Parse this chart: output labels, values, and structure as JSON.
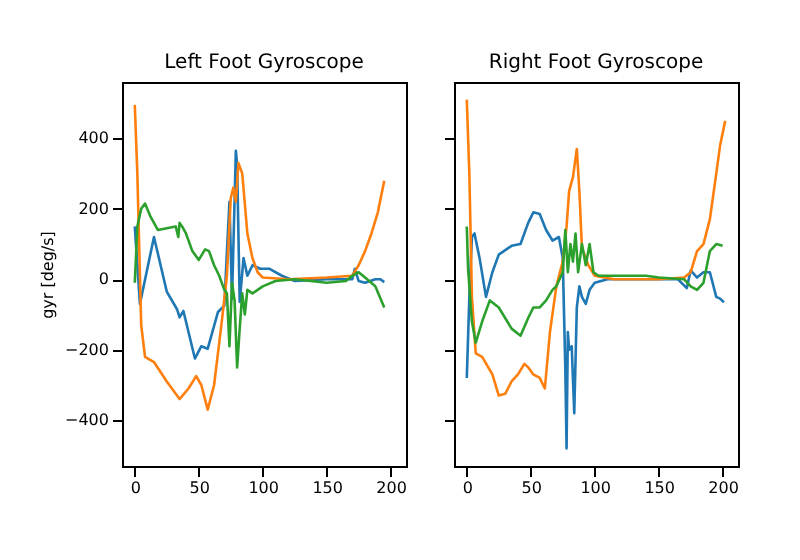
{
  "chart_data": [
    {
      "type": "line",
      "title": "Left Foot Gyroscope",
      "ylabel": "gyr [deg/s]",
      "xlim": [
        -10,
        212
      ],
      "ylim": [
        -530,
        560
      ],
      "xticks": [
        0,
        50,
        100,
        150,
        200
      ],
      "yticks": [
        -400,
        -200,
        0,
        200,
        400
      ],
      "series": [
        {
          "color": "#1f77b4",
          "x": [
            0,
            4,
            15,
            25,
            33,
            35,
            38,
            47,
            52,
            57,
            65,
            70,
            72,
            74,
            76,
            79,
            80,
            82,
            85,
            88,
            92,
            98,
            105,
            115,
            125,
            150,
            170,
            172,
            175,
            180,
            188,
            192,
            195
          ],
          "values": [
            150,
            -70,
            120,
            -35,
            -85,
            -108,
            -90,
            -225,
            -190,
            -197,
            -93,
            -75,
            78,
            220,
            -55,
            365,
            325,
            -64,
            60,
            10,
            40,
            30,
            30,
            10,
            -5,
            0,
            0,
            30,
            -5,
            -10,
            0,
            0,
            -8
          ]
        },
        {
          "color": "#ff7f0e",
          "x": [
            0,
            2,
            5,
            8,
            15,
            25,
            35,
            42,
            48,
            52,
            57,
            62,
            68,
            72,
            75,
            77,
            79,
            81,
            84,
            88,
            92,
            96,
            100,
            120,
            150,
            170,
            175,
            180,
            185,
            190,
            195
          ],
          "values": [
            495,
            300,
            -130,
            -220,
            -235,
            -290,
            -340,
            -310,
            -275,
            -300,
            -370,
            -300,
            -120,
            10,
            230,
            260,
            220,
            330,
            300,
            130,
            60,
            20,
            5,
            0,
            5,
            10,
            40,
            80,
            130,
            190,
            280
          ]
        },
        {
          "color": "#2ca02c",
          "x": [
            0,
            2,
            5,
            8,
            12,
            18,
            25,
            32,
            34,
            35,
            37,
            40,
            45,
            50,
            55,
            58,
            62,
            66,
            70,
            72,
            74,
            76,
            78,
            80,
            82,
            84,
            86,
            88,
            92,
            100,
            110,
            125,
            150,
            165,
            170,
            175,
            180,
            188,
            195
          ],
          "values": [
            -10,
            150,
            200,
            215,
            180,
            140,
            145,
            150,
            120,
            160,
            150,
            130,
            80,
            55,
            85,
            80,
            40,
            10,
            -30,
            -40,
            -190,
            -10,
            -60,
            -250,
            -140,
            -40,
            -100,
            -30,
            -40,
            -20,
            -5,
            0,
            -10,
            -5,
            10,
            20,
            5,
            -20,
            -80
          ]
        }
      ]
    },
    {
      "type": "line",
      "title": "Right Foot Gyroscope",
      "xlim": [
        -10,
        212
      ],
      "ylim": [
        -530,
        560
      ],
      "xticks": [
        0,
        50,
        100,
        150,
        200
      ],
      "yticks": [
        -400,
        -200,
        0,
        200,
        400
      ],
      "tick_labels": "x",
      "series": [
        {
          "color": "#1f77b4",
          "x": [
            0,
            2,
            4,
            6,
            10,
            15,
            20,
            25,
            35,
            42,
            48,
            52,
            57,
            62,
            67,
            72,
            75,
            77,
            78,
            79,
            80,
            82,
            84,
            86,
            88,
            90,
            93,
            96,
            100,
            110,
            130,
            150,
            165,
            172,
            175,
            180,
            185,
            190,
            195,
            198,
            201
          ],
          "values": [
            -280,
            -50,
            120,
            130,
            60,
            -50,
            20,
            70,
            95,
            100,
            160,
            190,
            185,
            140,
            110,
            120,
            60,
            -250,
            -480,
            -150,
            -200,
            -190,
            -380,
            -80,
            -20,
            -50,
            -70,
            -30,
            -10,
            0,
            0,
            0,
            0,
            -25,
            25,
            5,
            20,
            20,
            -50,
            -55,
            -65
          ]
        },
        {
          "color": "#ff7f0e",
          "x": [
            0,
            2,
            4,
            7,
            12,
            20,
            25,
            30,
            35,
            40,
            45,
            48,
            52,
            57,
            61,
            65,
            70,
            75,
            78,
            80,
            83,
            86,
            88,
            90,
            95,
            100,
            115,
            150,
            170,
            175,
            180,
            185,
            190,
            195,
            198,
            202
          ],
          "values": [
            510,
            300,
            -50,
            -210,
            -220,
            -270,
            -330,
            -325,
            -290,
            -270,
            -240,
            -250,
            -270,
            -280,
            -310,
            -150,
            -20,
            50,
            150,
            250,
            290,
            370,
            250,
            90,
            40,
            10,
            0,
            0,
            5,
            20,
            80,
            100,
            170,
            300,
            380,
            450
          ]
        },
        {
          "color": "#2ca02c",
          "x": [
            0,
            1,
            4,
            7,
            12,
            18,
            25,
            35,
            42,
            48,
            52,
            57,
            62,
            67,
            70,
            75,
            77,
            79,
            81,
            83,
            85,
            87,
            90,
            93,
            96,
            99,
            103,
            110,
            130,
            140,
            150,
            170,
            175,
            180,
            185,
            190,
            195,
            200
          ],
          "values": [
            150,
            30,
            -120,
            -180,
            -120,
            -60,
            -80,
            -140,
            -160,
            -110,
            -80,
            -80,
            -60,
            -30,
            -20,
            20,
            140,
            20,
            100,
            50,
            130,
            20,
            100,
            40,
            100,
            20,
            10,
            10,
            10,
            10,
            5,
            0,
            -20,
            -30,
            -10,
            80,
            100,
            95
          ]
        }
      ]
    }
  ]
}
